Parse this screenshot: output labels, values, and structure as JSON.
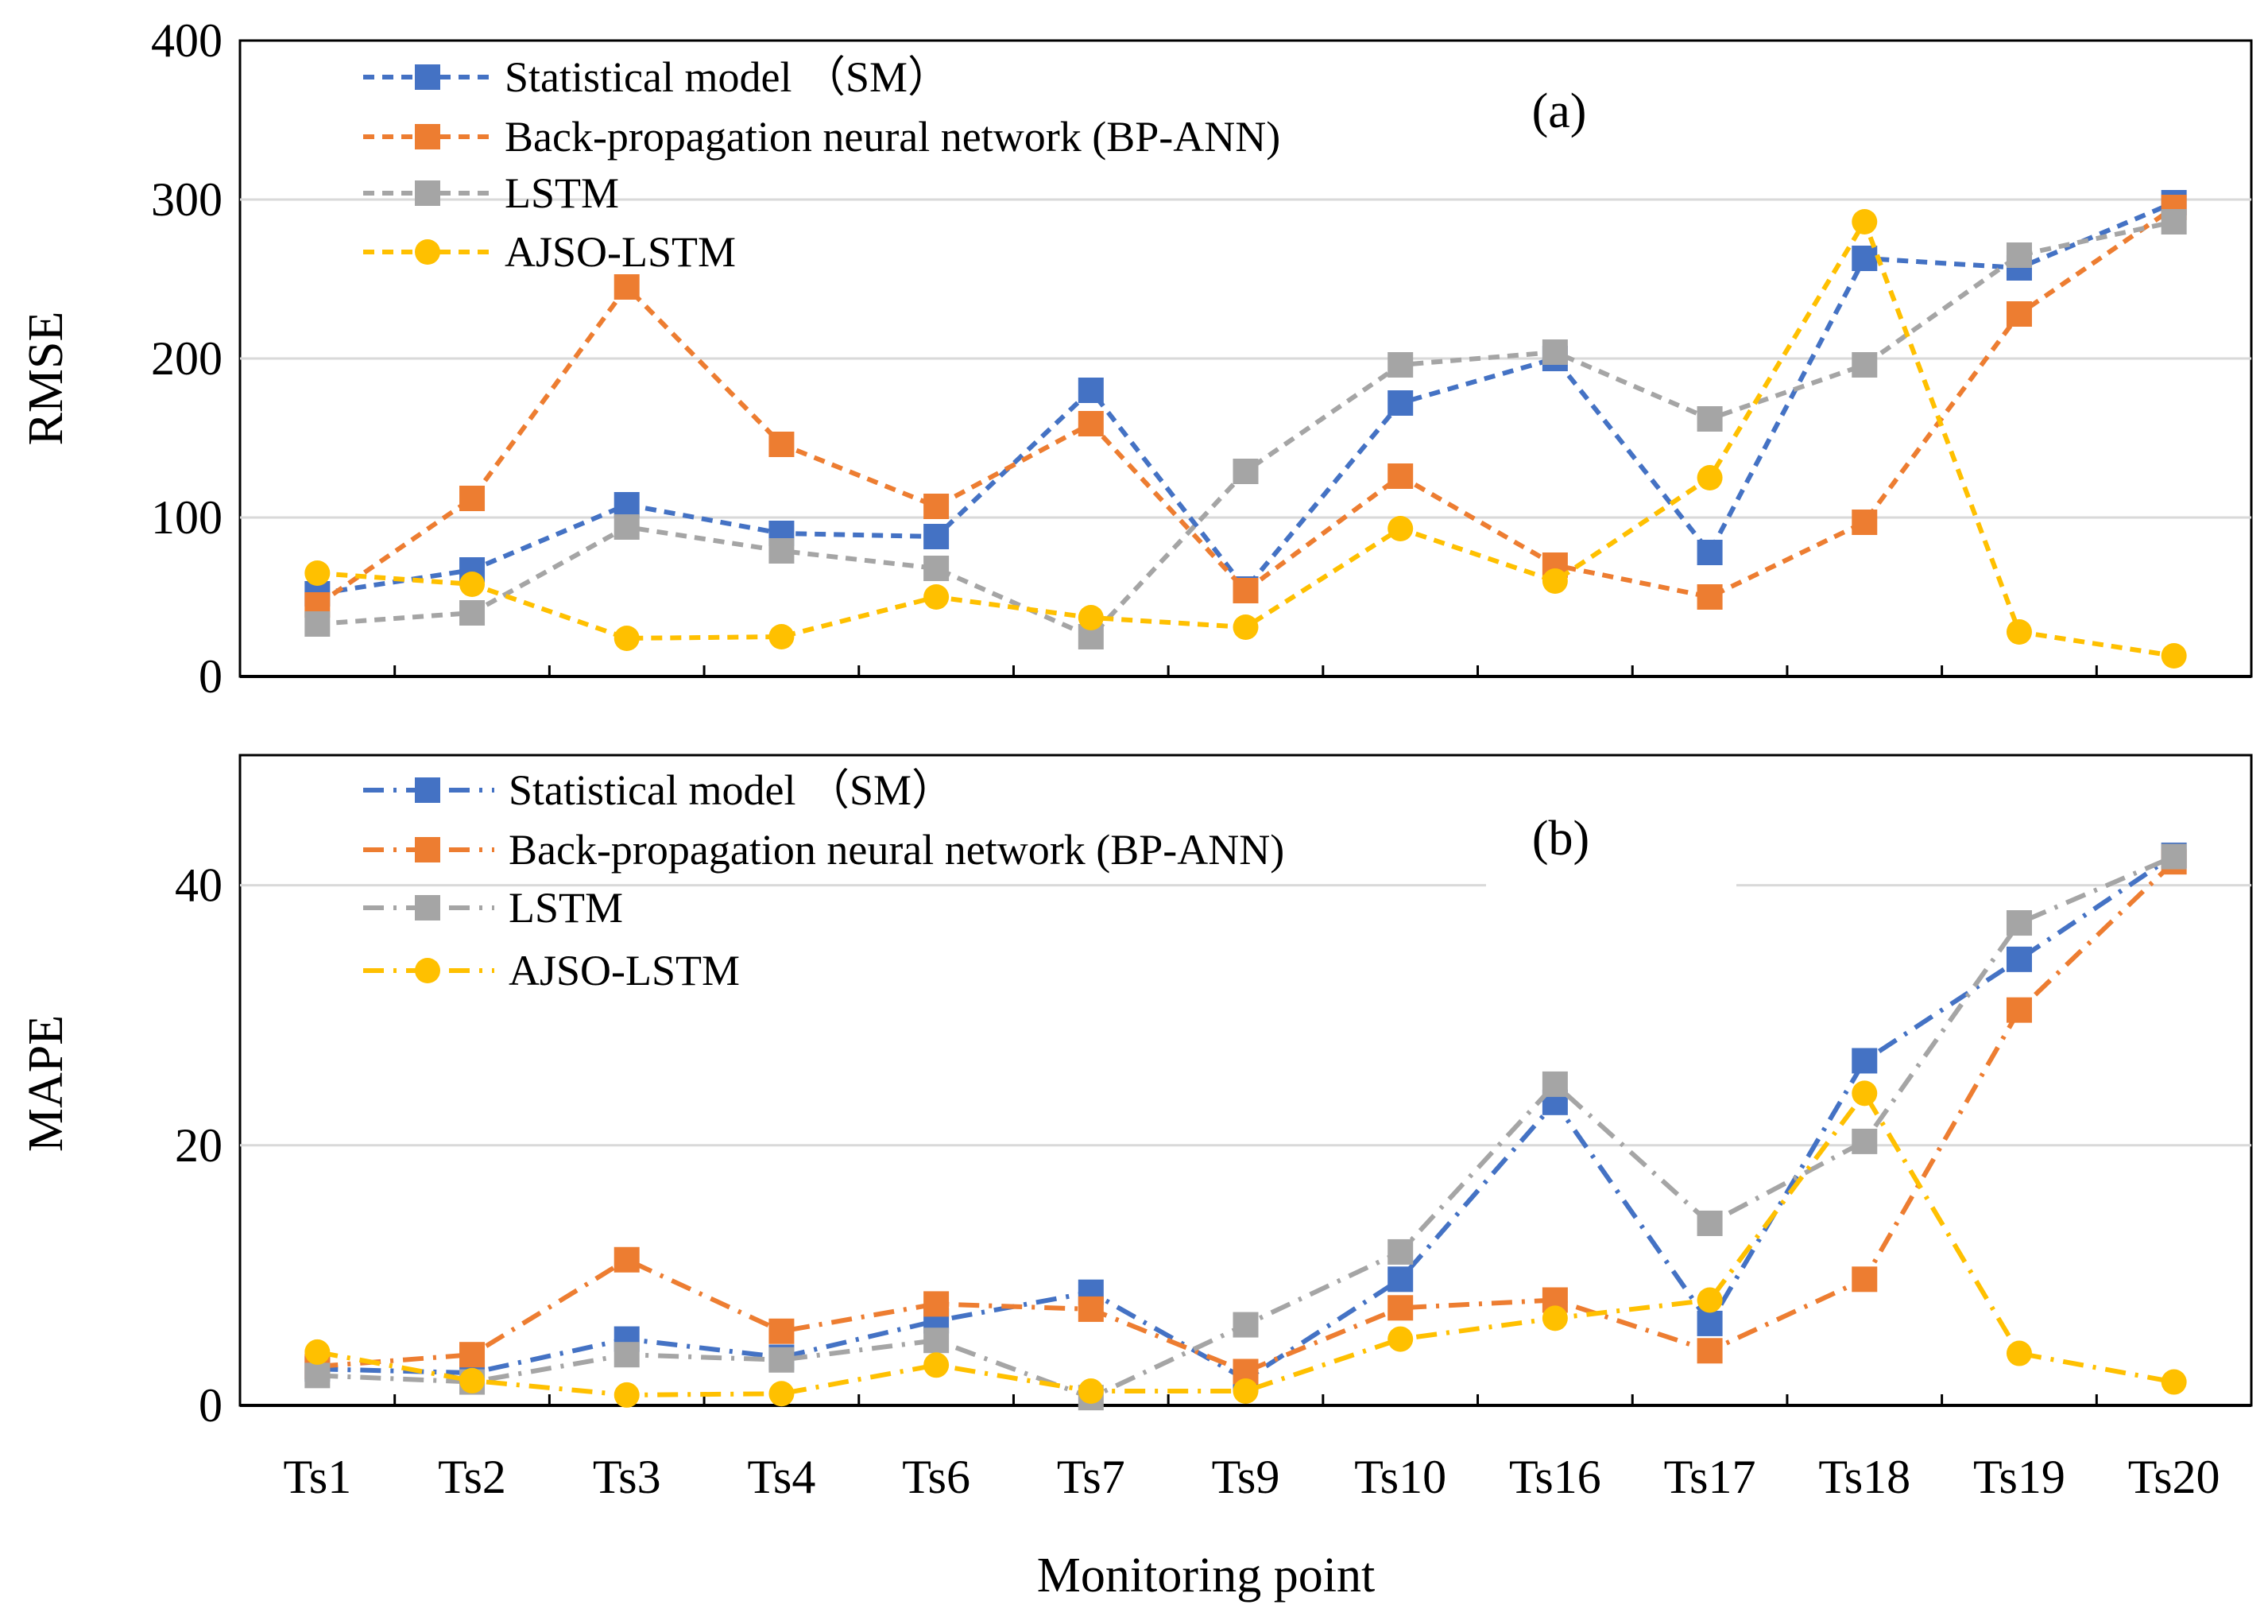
{
  "chart_data": [
    {
      "type": "line",
      "panel_label": "(a)",
      "ylabel": "RMSE",
      "ylim": [
        0,
        400
      ],
      "yticks": [
        "0",
        "100",
        "200",
        "300",
        "400"
      ],
      "grid": true,
      "legend_position": "top-left",
      "categories": [
        "Ts1",
        "Ts2",
        "Ts3",
        "Ts4",
        "Ts6",
        "Ts7",
        "Ts9",
        "Ts10",
        "Ts16",
        "Ts17",
        "Ts18",
        "Ts19",
        "Ts20"
      ],
      "series": [
        {
          "name": "Statistical model （SM）",
          "color": "#4472C4",
          "marker": "square",
          "values": [
            52,
            67,
            108,
            90,
            88,
            180,
            55,
            172,
            200,
            78,
            263,
            257,
            298
          ]
        },
        {
          "name": "Back-propagation neural network (BP-ANN)",
          "color": "#ED7D31",
          "marker": "square",
          "values": [
            45,
            112,
            245,
            146,
            107,
            159,
            54,
            126,
            70,
            50,
            97,
            228,
            295
          ]
        },
        {
          "name": "LSTM",
          "color": "#A5A5A5",
          "marker": "square",
          "values": [
            33,
            40,
            94,
            79,
            68,
            25,
            129,
            196,
            204,
            162,
            196,
            265,
            286
          ]
        },
        {
          "name": "AJSO-LSTM",
          "color": "#FFC000",
          "marker": "circle",
          "values": [
            65,
            58,
            24,
            25,
            50,
            37,
            31,
            93,
            60,
            125,
            286,
            28,
            13
          ]
        }
      ]
    },
    {
      "type": "line",
      "panel_label": "(b)",
      "ylabel": "MAPE",
      "xlabel": "Monitoring point",
      "ylim": [
        0,
        50
      ],
      "yticks": [
        "0",
        "20",
        "40"
      ],
      "grid": true,
      "legend_position": "top-left",
      "categories": [
        "Ts1",
        "Ts2",
        "Ts3",
        "Ts4",
        "Ts6",
        "Ts7",
        "Ts9",
        "Ts10",
        "Ts16",
        "Ts17",
        "Ts18",
        "Ts19",
        "Ts20"
      ],
      "series": [
        {
          "name": "Statistical model （SM）",
          "color": "#4472C4",
          "marker": "square",
          "values": [
            2.8,
            2.5,
            5.1,
            3.7,
            6.5,
            8.7,
            2.0,
            9.7,
            23.3,
            6.3,
            26.5,
            34.3,
            42.3
          ]
        },
        {
          "name": "Back-propagation neural network (BP-ANN)",
          "color": "#ED7D31",
          "marker": "square",
          "values": [
            3.0,
            3.9,
            11.2,
            5.7,
            7.8,
            7.4,
            2.6,
            7.5,
            8.1,
            4.2,
            9.7,
            30.4,
            41.8
          ]
        },
        {
          "name": "LSTM",
          "color": "#A5A5A5",
          "marker": "square",
          "values": [
            2.3,
            1.8,
            3.9,
            3.5,
            5.0,
            0.6,
            6.2,
            11.8,
            24.7,
            14.0,
            20.3,
            37.1,
            42.2
          ]
        },
        {
          "name": "AJSO-LSTM",
          "color": "#FFC000",
          "marker": "circle",
          "values": [
            4.1,
            1.9,
            0.8,
            0.9,
            3.1,
            1.1,
            1.1,
            5.1,
            6.7,
            8.1,
            24.0,
            4.0,
            1.8
          ]
        }
      ]
    }
  ]
}
